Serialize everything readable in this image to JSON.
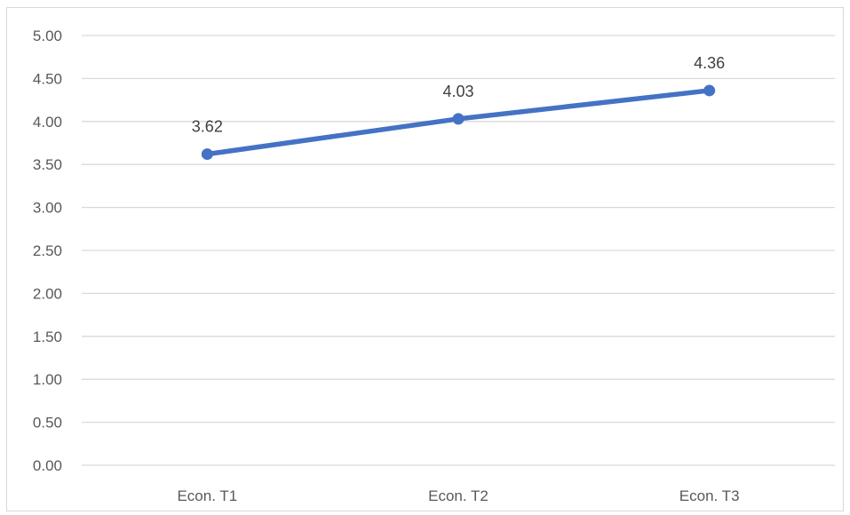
{
  "chart_data": {
    "type": "line",
    "title": "",
    "xlabel": "",
    "ylabel": "",
    "categories": [
      "Econ. T1",
      "Econ. T2",
      "Econ. T3"
    ],
    "series": [
      {
        "values": [
          3.62,
          4.03,
          4.36
        ],
        "color": "#4472c4",
        "data_labels": [
          "3.62",
          "4.03",
          "4.36"
        ]
      }
    ],
    "y_ticks": [
      "0.00",
      "0.50",
      "1.00",
      "1.50",
      "2.00",
      "2.50",
      "3.00",
      "3.50",
      "4.00",
      "4.50",
      "5.00"
    ],
    "ylim": [
      0,
      5
    ],
    "grid": true,
    "legend": "none",
    "colors": {
      "line": "#4472c4",
      "grid": "#d9d9d9",
      "axis_text": "#595959",
      "label_text": "#404040"
    }
  }
}
